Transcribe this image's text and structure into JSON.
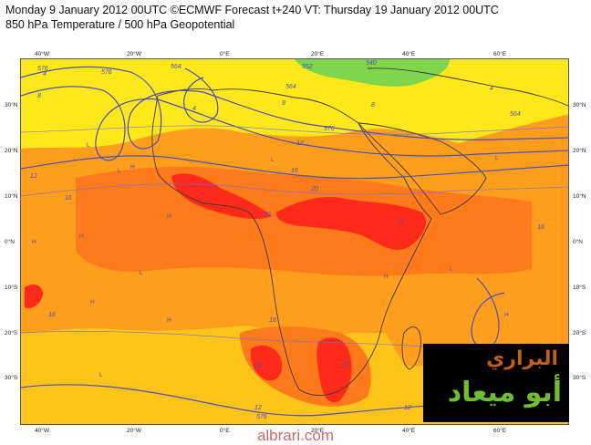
{
  "header": {
    "line1": "Monday 9 January 2012 00UTC ©ECMWF Forecast t+240 VT: Thursday 19 January 2012 00UTC",
    "line2": "850 hPa Temperature / 500 hPa Geopotential"
  },
  "axes": {
    "lon_labels": [
      "40°W",
      "20°W",
      "0°E",
      "20°E",
      "40°E",
      "60°E"
    ],
    "lat_labels": [
      "30°N",
      "20°N",
      "10°N",
      "0°N",
      "10°S",
      "20°S",
      "30°S"
    ]
  },
  "map": {
    "temperature_labels": [
      "4",
      "4",
      "4",
      "8",
      "8",
      "8",
      "12",
      "12",
      "12",
      "16",
      "16",
      "16",
      "16",
      "20",
      "20",
      "20",
      "20",
      "16",
      "12"
    ],
    "geopotential_labels": [
      "576",
      "576",
      "564",
      "552",
      "540",
      "564",
      "576",
      "576",
      "564"
    ],
    "pressure_markers": [
      "H",
      "L"
    ],
    "colors": {
      "yellow": "#ffe81a",
      "yellow_orange": "#ffc41a",
      "orange": "#ff9d1c",
      "dark_orange": "#ff7a1a",
      "red": "#ff2a1a",
      "green": "#7fd64a",
      "contour_blue": "#4a50b8"
    }
  },
  "logo": {
    "line1": "البراري",
    "line2": "أبو ميعاد"
  },
  "footer": "albrari.com"
}
